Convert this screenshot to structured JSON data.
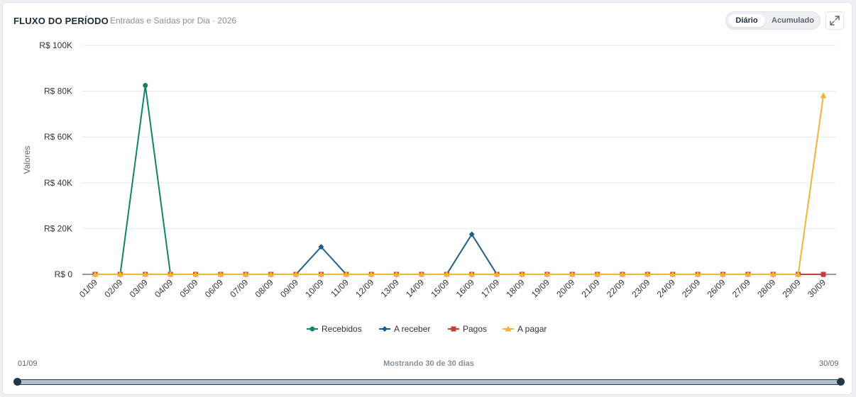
{
  "header": {
    "title": "FLUXO DO PERÍODO",
    "subtitle": "Entradas e Saídas por Dia · 2026"
  },
  "view_toggle": {
    "options": [
      "Diário",
      "Acumulado"
    ],
    "selected": "Diário"
  },
  "icons": {
    "expand": "expand-icon"
  },
  "colors": {
    "recebidos": "#118466",
    "a_receber": "#1d5f8a",
    "pagos": "#c83e3a",
    "a_pagar": "#f0b43c",
    "grid": "#e6e8eb",
    "axis_text": "#333333"
  },
  "range": {
    "start_label": "01/09",
    "end_label": "30/09",
    "status": "Mostrando 30 de 30 dias"
  },
  "chart_data": {
    "type": "line",
    "ylabel": "Valores",
    "ylim": [
      0,
      100000
    ],
    "yticks": [
      0,
      20000,
      40000,
      60000,
      80000,
      100000
    ],
    "ytick_labels": [
      "R$ 0",
      "R$ 20K",
      "R$ 40K",
      "R$ 60K",
      "R$ 80K",
      "R$ 100K"
    ],
    "grid": true,
    "legend_position": "bottom-center",
    "categories": [
      "01/09",
      "02/09",
      "03/09",
      "04/09",
      "05/09",
      "06/09",
      "07/09",
      "08/09",
      "09/09",
      "10/09",
      "11/09",
      "12/09",
      "13/09",
      "14/09",
      "15/09",
      "16/09",
      "17/09",
      "18/09",
      "19/09",
      "20/09",
      "21/09",
      "22/09",
      "23/09",
      "24/09",
      "25/09",
      "26/09",
      "27/09",
      "28/09",
      "29/09",
      "30/09"
    ],
    "series": [
      {
        "name": "Recebidos",
        "marker": "circle",
        "values": [
          0,
          0,
          82500,
          0,
          0,
          0,
          0,
          0,
          0,
          0,
          0,
          0,
          0,
          0,
          0,
          0,
          0,
          0,
          0,
          0,
          0,
          0,
          0,
          0,
          0,
          0,
          0,
          0,
          0,
          0
        ]
      },
      {
        "name": "A receber",
        "marker": "diamond",
        "values": [
          0,
          0,
          0,
          0,
          0,
          0,
          0,
          0,
          0,
          12000,
          0,
          0,
          0,
          0,
          0,
          17500,
          0,
          0,
          0,
          0,
          0,
          0,
          0,
          0,
          0,
          0,
          0,
          0,
          0,
          0
        ]
      },
      {
        "name": "Pagos",
        "marker": "square",
        "values": [
          0,
          0,
          0,
          0,
          0,
          0,
          0,
          0,
          0,
          0,
          0,
          0,
          0,
          0,
          0,
          0,
          0,
          0,
          0,
          0,
          0,
          0,
          0,
          0,
          0,
          0,
          0,
          0,
          0,
          0
        ]
      },
      {
        "name": "A pagar",
        "marker": "triangle",
        "values": [
          0,
          0,
          0,
          0,
          0,
          0,
          0,
          0,
          0,
          0,
          0,
          0,
          0,
          0,
          0,
          0,
          0,
          0,
          0,
          0,
          0,
          0,
          0,
          0,
          0,
          0,
          0,
          0,
          0,
          78000
        ]
      }
    ]
  }
}
